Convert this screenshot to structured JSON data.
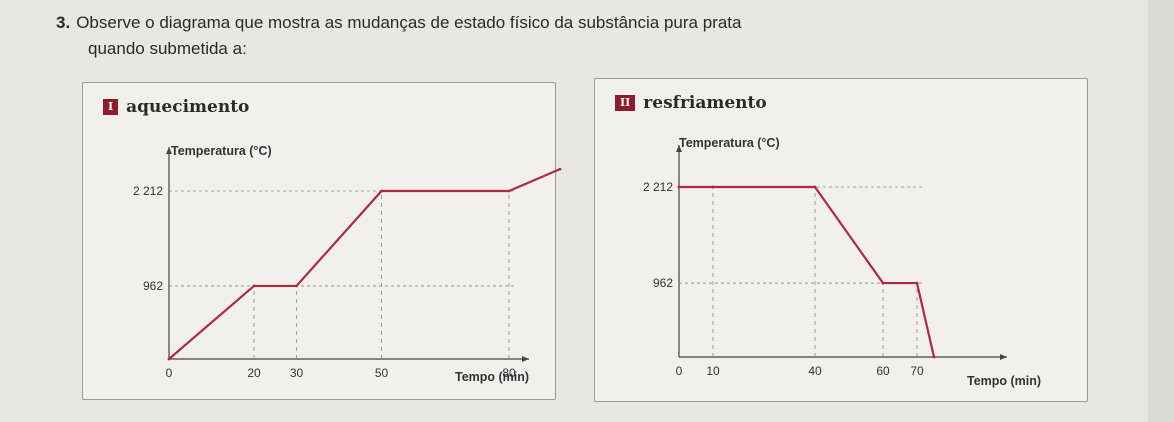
{
  "question": {
    "number": "3.",
    "text_line1": "Observe o diagrama que mostra as mudanças de estado físico da substância pura prata",
    "text_line2": "quando submetida a:"
  },
  "colors": {
    "line": "#b02a3e",
    "accent": "#8c1c2c",
    "grid": "#8a8a8a"
  },
  "chart_data": [
    {
      "type": "line",
      "tag": "I",
      "title": "aquecimento",
      "xlabel": "Tempo (min)",
      "ylabel": "Temperatura (°C)",
      "x_ticks": [
        "0",
        "20",
        "30",
        "50",
        "80"
      ],
      "y_ticks": [
        "962",
        "2 212"
      ],
      "points": [
        [
          0,
          0
        ],
        [
          20,
          962
        ],
        [
          30,
          962
        ],
        [
          50,
          2212
        ],
        [
          80,
          2212
        ],
        [
          92,
          2500
        ]
      ],
      "xlim": [
        0,
        100
      ],
      "ylim": [
        0,
        2700
      ]
    },
    {
      "type": "line",
      "tag": "II",
      "title": "resfriamento",
      "xlabel": "Tempo (min)",
      "ylabel": "Temperatura (°C)",
      "x_ticks": [
        "0",
        "10",
        "40",
        "60",
        "70"
      ],
      "y_ticks": [
        "962",
        "2 212"
      ],
      "points": [
        [
          0,
          2212
        ],
        [
          10,
          2212
        ],
        [
          40,
          2212
        ],
        [
          60,
          962
        ],
        [
          70,
          962
        ],
        [
          75,
          0
        ]
      ],
      "xlim": [
        0,
        100
      ],
      "ylim": [
        0,
        2700
      ]
    }
  ]
}
